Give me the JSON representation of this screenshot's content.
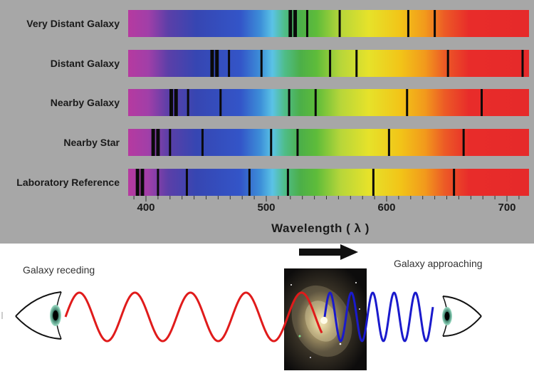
{
  "spectra": {
    "rows": [
      {
        "label": "Very Distant Galaxy",
        "lines": [
          520,
          524,
          534,
          561,
          618,
          640
        ]
      },
      {
        "label": "Distant Galaxy",
        "lines": [
          455,
          459,
          469,
          496,
          553,
          575,
          651,
          713
        ]
      },
      {
        "label": "Nearby Galaxy",
        "lines": [
          421,
          425,
          435,
          462,
          519,
          541,
          617,
          679
        ]
      },
      {
        "label": "Nearby Star",
        "lines": [
          406,
          410,
          420,
          447,
          504,
          526,
          602,
          664
        ]
      },
      {
        "label": "Laboratory Reference",
        "lines": [
          393,
          397,
          410,
          434,
          486,
          518,
          589,
          656
        ]
      }
    ],
    "ticks": [
      "400",
      "500",
      "600",
      "700"
    ],
    "axis_title": "Wavelength ( λ )"
  },
  "doppler": {
    "receding_label": "Galaxy receding",
    "approaching_label": "Galaxy approaching",
    "colors": {
      "red_wave": "#e01b1b",
      "blue_wave": "#1a1acc",
      "arrow": "#111111"
    },
    "icons": [
      "eye-left-icon",
      "eye-right-icon",
      "motion-arrow-icon",
      "galaxy-image"
    ]
  }
}
